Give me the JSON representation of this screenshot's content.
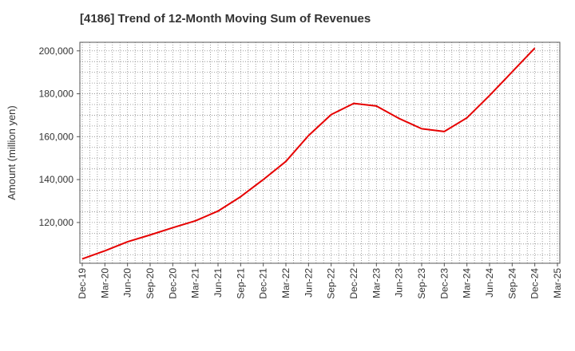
{
  "chart_data": {
    "type": "line",
    "title": "[4186]  Trend of 12-Month Moving Sum of Revenues",
    "xlabel": "",
    "ylabel": "Amount (million yen)",
    "ylim": [
      101000,
      204000
    ],
    "yticks": [
      120000,
      140000,
      160000,
      180000,
      200000
    ],
    "ytick_labels": [
      "120,000",
      "140,000",
      "160,000",
      "180,000",
      "200,000"
    ],
    "categories": [
      "Dec-19",
      "Mar-20",
      "Jun-20",
      "Sep-20",
      "Dec-20",
      "Mar-21",
      "Jun-21",
      "Sep-21",
      "Dec-21",
      "Mar-22",
      "Jun-22",
      "Sep-22",
      "Dec-22",
      "Mar-23",
      "Jun-23",
      "Sep-23",
      "Dec-23",
      "Mar-24",
      "Jun-24",
      "Sep-24",
      "Dec-24",
      "Mar-25"
    ],
    "grid": true,
    "line_color": "#e60000",
    "series": [
      {
        "name": "",
        "values": [
          103000,
          106800,
          111000,
          114200,
          117600,
          120800,
          125300,
          132000,
          140000,
          148500,
          160500,
          170300,
          175500,
          174300,
          168500,
          163700,
          162400,
          168800,
          179200,
          190200,
          201300,
          null
        ]
      }
    ]
  }
}
